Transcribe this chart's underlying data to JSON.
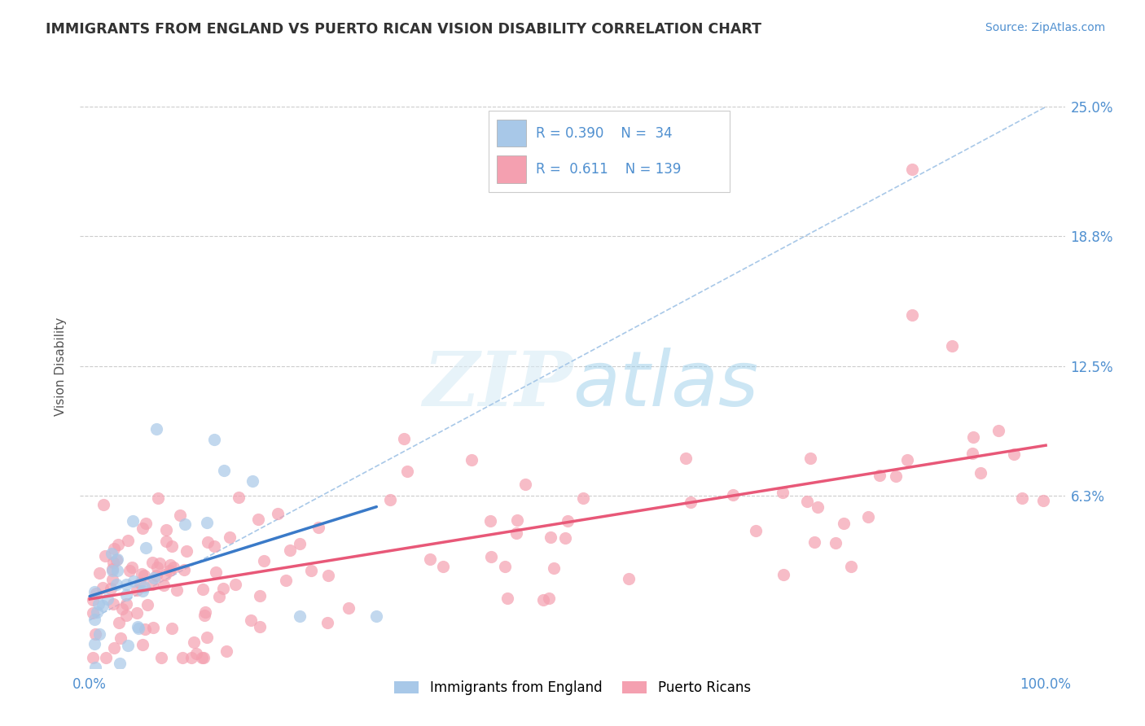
{
  "title": "IMMIGRANTS FROM ENGLAND VS PUERTO RICAN VISION DISABILITY CORRELATION CHART",
  "source": "Source: ZipAtlas.com",
  "ylabel": "Vision Disability",
  "watermark": "ZIPatlas",
  "ytick_labels": [
    "25.0%",
    "18.8%",
    "12.5%",
    "6.3%"
  ],
  "ytick_values": [
    0.25,
    0.188,
    0.125,
    0.063
  ],
  "xlim": [
    0.0,
    1.0
  ],
  "ylim": [
    -0.02,
    0.27
  ],
  "blue_color": "#A8C8E8",
  "pink_color": "#F4A0B0",
  "blue_line_color": "#3A7AC8",
  "pink_line_color": "#E85878",
  "dashed_line_color": "#A8C8E8",
  "title_color": "#333333",
  "axis_label_color": "#5090D0",
  "grid_color": "#CCCCCC",
  "background_color": "#FFFFFF",
  "blue_scatter_seed": 10,
  "pink_scatter_seed": 20,
  "legend_blue_r": "R = 0.390",
  "legend_blue_n": "N =  34",
  "legend_pink_r": "R =  0.611",
  "legend_pink_n": "N = 139"
}
